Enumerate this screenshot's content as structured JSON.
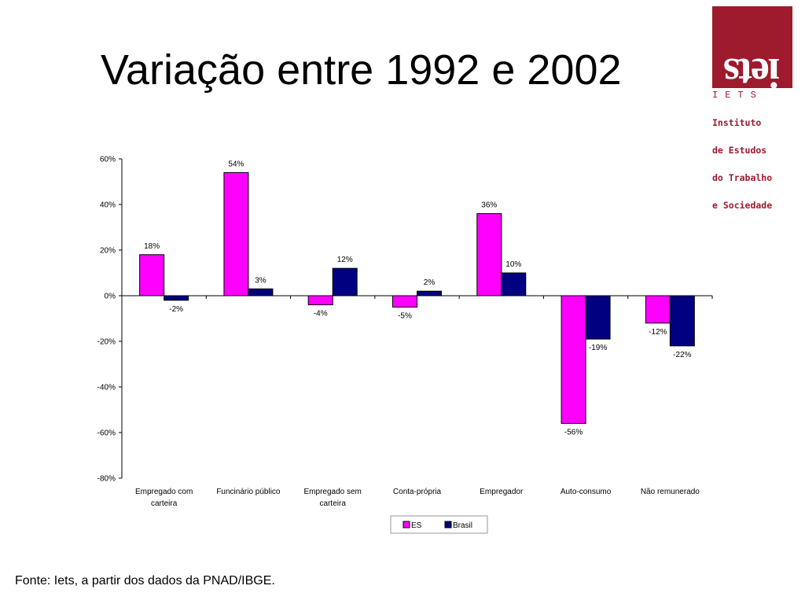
{
  "slide": {
    "title": "Variação entre 1992 e 2002",
    "source": "Fonte: Iets, a partir dos dados da PNAD/IBGE."
  },
  "logo": {
    "acronym": "IETS",
    "lines": [
      "Instituto",
      "de Estudos",
      "do Trabalho",
      "e Sociedade"
    ],
    "mark_text": "iets",
    "color": "#9e1a2d"
  },
  "chart_data": {
    "type": "bar",
    "categories": [
      "Empregado com carteira",
      "Funcinário público",
      "Empregado sem carteira",
      "Conta-própria",
      "Empregador",
      "Auto-consumo",
      "Não remunerado"
    ],
    "series": [
      {
        "name": "ES",
        "values": [
          18,
          54,
          -4,
          -5,
          36,
          -56,
          -12
        ],
        "labels": [
          "18%",
          "54%",
          "-4%",
          "-5%",
          "36%",
          "-56%",
          "-12%"
        ],
        "color": "#ff00ff"
      },
      {
        "name": "Brasil",
        "values": [
          -2,
          3,
          12,
          2,
          10,
          -19,
          -22
        ],
        "labels": [
          "-2%",
          "3%",
          "12%",
          "2%",
          "10%",
          "-19%",
          "-22%"
        ],
        "color": "#000080"
      }
    ],
    "ylim": [
      -80,
      60
    ],
    "yticks": [
      60,
      40,
      20,
      0,
      -20,
      -40,
      -60,
      -80
    ],
    "ytick_labels": [
      "60%",
      "40%",
      "20%",
      "0%",
      "-20%",
      "-40%",
      "-60%",
      "-80%"
    ],
    "title": "",
    "xlabel": "",
    "ylabel": "",
    "grid": false,
    "legend": "bottom-center"
  }
}
